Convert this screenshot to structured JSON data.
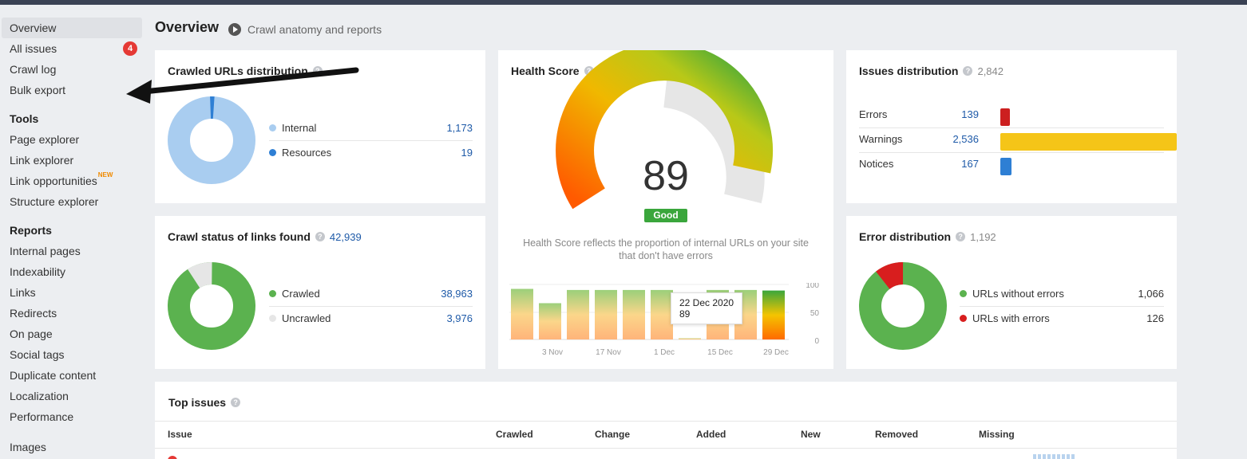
{
  "header": {
    "title": "Overview",
    "subtitle": "Crawl anatomy and reports"
  },
  "sidebar": {
    "top_items": [
      {
        "label": "Overview",
        "active": true
      },
      {
        "label": "All issues",
        "badge": "4"
      },
      {
        "label": "Crawl log"
      },
      {
        "label": "Bulk export"
      }
    ],
    "tools_heading": "Tools",
    "tools": [
      {
        "label": "Page explorer"
      },
      {
        "label": "Link explorer"
      },
      {
        "label": "Link opportunities",
        "tag": "NEW"
      },
      {
        "label": "Structure explorer"
      }
    ],
    "reports_heading": "Reports",
    "reports": [
      {
        "label": "Internal pages"
      },
      {
        "label": "Indexability"
      },
      {
        "label": "Links"
      },
      {
        "label": "Redirects"
      },
      {
        "label": "On page"
      },
      {
        "label": "Social tags"
      },
      {
        "label": "Duplicate content"
      },
      {
        "label": "Localization"
      },
      {
        "label": "Performance"
      },
      {
        "label": "Images"
      }
    ]
  },
  "crawled_urls": {
    "title": "Crawled URLs distribution",
    "rows": [
      {
        "label": "Internal",
        "value": "1,173",
        "color": "#a9cdf0"
      },
      {
        "label": "Resources",
        "value": "19",
        "color": "#2e7fd4"
      }
    ]
  },
  "crawl_status": {
    "title": "Crawl status of links found",
    "count": "42,939",
    "rows": [
      {
        "label": "Crawled",
        "value": "38,963",
        "color": "#5bb24f"
      },
      {
        "label": "Uncrawled",
        "value": "3,976",
        "color": "#e6e6e6"
      }
    ]
  },
  "health": {
    "title": "Health Score",
    "score": "89",
    "status": "Good",
    "description": "Health Score reflects the proportion of internal URLs on your site that don't have errors",
    "tooltip_date": "22 Dec 2020",
    "tooltip_value": "89",
    "x_labels": [
      "3 Nov",
      "17 Nov",
      "1 Dec",
      "15 Dec",
      "29 Dec"
    ],
    "y_labels": [
      "100",
      "50",
      "0"
    ]
  },
  "issues_distribution": {
    "title": "Issues distribution",
    "count": "2,842",
    "rows": [
      {
        "label": "Errors",
        "value": "139",
        "color": "#cc1f1f"
      },
      {
        "label": "Warnings",
        "value": "2,536",
        "color": "#f5c518"
      },
      {
        "label": "Notices",
        "value": "167",
        "color": "#2e7fd4"
      }
    ]
  },
  "error_distribution": {
    "title": "Error distribution",
    "count": "1,192",
    "rows": [
      {
        "label": "URLs without errors",
        "value": "1,066",
        "color": "#5bb24f"
      },
      {
        "label": "URLs with errors",
        "value": "126",
        "color": "#d81e1e"
      }
    ]
  },
  "top_issues": {
    "title": "Top issues",
    "columns": [
      "Issue",
      "Crawled",
      "Change",
      "Added",
      "New",
      "Removed",
      "Missing"
    ]
  },
  "chart_data": {
    "type": "bar",
    "categories": [
      "",
      "3 Nov",
      "",
      "17 Nov",
      "",
      "1 Dec",
      "",
      "15 Dec",
      "",
      "29 Dec"
    ],
    "values": [
      92,
      66,
      90,
      90,
      90,
      90,
      0,
      90,
      90,
      89
    ],
    "ylim": [
      0,
      100
    ],
    "xlabel": "",
    "ylabel": ""
  }
}
